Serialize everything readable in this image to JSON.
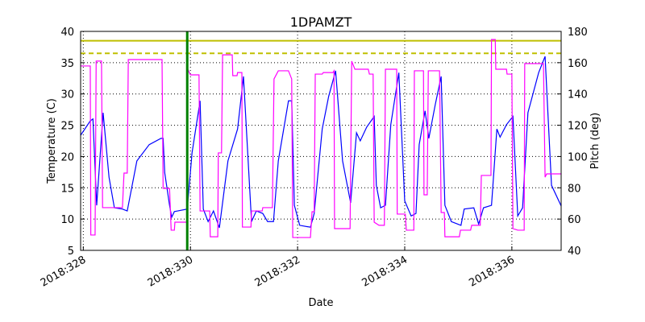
{
  "chart_data": {
    "type": "line",
    "title": "1DPAMZT",
    "x_label": "Date",
    "y_label": "Temperature (C)",
    "y2_label": "Pitch (deg)",
    "xlim": [
      327.95,
      336.92
    ],
    "xticks": [
      {
        "value": 328,
        "label": "2018:328"
      },
      {
        "value": 330,
        "label": "2018:330"
      },
      {
        "value": 332,
        "label": "2018:332"
      },
      {
        "value": 334,
        "label": "2018:334"
      },
      {
        "value": 336,
        "label": "2018:336"
      }
    ],
    "ylim": [
      5,
      40
    ],
    "yticks": [
      5,
      10,
      15,
      20,
      25,
      30,
      35,
      40
    ],
    "y2lim": [
      40,
      180
    ],
    "y2ticks": [
      40,
      60,
      80,
      100,
      120,
      140,
      160,
      180
    ],
    "y2_color": "#ff00ff",
    "grid": true,
    "hlines": [
      {
        "value": 38.5,
        "color": "#bfbf00",
        "style": "solid"
      },
      {
        "value": 36.5,
        "color": "#bfbf00",
        "style": "dashed"
      }
    ],
    "vlines": [
      {
        "value": 329.94,
        "color": "#008000"
      }
    ],
    "series": [
      {
        "color": "#0000ff",
        "x": [
          327.95,
          328.13,
          328.18,
          328.25,
          328.37,
          328.48,
          328.58,
          328.73,
          328.82,
          329.0,
          329.23,
          329.45,
          329.49,
          329.52,
          329.61,
          329.65,
          329.7,
          329.76,
          329.94,
          330.03,
          330.18,
          330.24,
          330.33,
          330.43,
          330.54,
          330.7,
          330.88,
          330.99,
          331.14,
          331.23,
          331.35,
          331.44,
          331.55,
          331.64,
          331.83,
          331.89,
          331.94,
          332.04,
          332.24,
          332.31,
          332.46,
          332.58,
          332.71,
          332.84,
          332.99,
          333.1,
          333.17,
          333.29,
          333.43,
          333.47,
          333.55,
          333.64,
          333.74,
          333.89,
          334.0,
          334.12,
          334.21,
          334.27,
          334.38,
          334.45,
          334.57,
          334.68,
          334.75,
          334.87,
          335.05,
          335.11,
          335.29,
          335.38,
          335.47,
          335.62,
          335.72,
          335.78,
          335.9,
          336.02,
          336.11,
          336.2,
          336.3,
          336.5,
          336.62,
          336.74,
          336.92
        ],
        "values": [
          23.4,
          25.7,
          26,
          12.2,
          27,
          16.7,
          11.8,
          11.6,
          11.3,
          19.3,
          21.9,
          22.9,
          22.9,
          17.4,
          12.2,
          10.3,
          11.2,
          11.3,
          11.6,
          20.6,
          28.9,
          11.6,
          9.6,
          11.3,
          8.6,
          19.3,
          24.4,
          32.8,
          9.6,
          11.3,
          10.9,
          9.6,
          9.6,
          19.3,
          28.9,
          28.9,
          12.2,
          9.0,
          8.7,
          10.9,
          24.4,
          29.6,
          33.7,
          19.3,
          12.6,
          23.8,
          22.5,
          24.7,
          26.4,
          15.4,
          11.8,
          12.2,
          25.1,
          33.4,
          12.9,
          10.5,
          10.9,
          21.9,
          27.3,
          22.9,
          28.3,
          32.8,
          12.2,
          9.6,
          9.0,
          11.6,
          11.8,
          9.2,
          11.8,
          12.2,
          24.4,
          23.1,
          25.1,
          26.4,
          10.5,
          11.8,
          27,
          33.4,
          36,
          15.4,
          12.1
        ]
      },
      {
        "color": "#ff00ff",
        "axis": "y2",
        "x": [
          327.95,
          328.13,
          328.14,
          328.22,
          328.24,
          328.34,
          328.36,
          328.73,
          328.76,
          328.82,
          328.84,
          329.47,
          329.49,
          329.61,
          329.64,
          329.7,
          329.71,
          329.94,
          329.95,
          330.0,
          330.16,
          330.18,
          330.36,
          330.37,
          330.51,
          330.52,
          330.58,
          330.6,
          330.78,
          330.79,
          330.87,
          330.88,
          330.96,
          330.97,
          331.13,
          331.14,
          331.34,
          331.35,
          331.53,
          331.56,
          331.64,
          331.83,
          331.89,
          331.91,
          332.24,
          332.27,
          332.31,
          332.33,
          332.46,
          332.48,
          332.66,
          332.68,
          332.69,
          332.98,
          333.01,
          333.07,
          333.32,
          333.34,
          333.41,
          333.43,
          333.52,
          333.62,
          333.64,
          333.85,
          333.86,
          334.01,
          334.03,
          334.17,
          334.18,
          334.35,
          334.36,
          334.42,
          334.44,
          334.65,
          334.68,
          334.74,
          334.75,
          335.02,
          335.04,
          335.23,
          335.25,
          335.41,
          335.43,
          335.61,
          335.62,
          335.69,
          335.7,
          335.9,
          335.91,
          336.0,
          336.02,
          336.11,
          336.23,
          336.24,
          336.59,
          336.62,
          336.65,
          336.92
        ],
        "values": [
          157.9,
          157.9,
          49.8,
          49.8,
          161,
          161,
          67.3,
          67.3,
          89.4,
          89.4,
          162,
          162,
          79.6,
          79.6,
          52.9,
          52.9,
          58,
          58,
          155.8,
          152.2,
          152.2,
          65.2,
          65.2,
          48.7,
          48.7,
          102.3,
          102.3,
          165,
          165,
          151.7,
          151.7,
          153.7,
          153.7,
          54.9,
          54.9,
          65.2,
          65.2,
          67.3,
          67.3,
          149.6,
          154.8,
          154.8,
          149.6,
          48.2,
          48.2,
          64.7,
          64.7,
          152.7,
          152.7,
          153.7,
          153.7,
          154.8,
          53.9,
          53.9,
          161,
          155.8,
          155.8,
          152.7,
          152.7,
          58,
          56,
          56,
          155.8,
          155.8,
          63.2,
          63.2,
          52.9,
          52.9,
          154.8,
          154.8,
          75.5,
          75.5,
          154.8,
          154.8,
          64.2,
          64.2,
          48.7,
          48.7,
          52.9,
          52.9,
          56,
          56,
          87.9,
          87.9,
          174.8,
          174.8,
          155.8,
          155.8,
          152.7,
          152.7,
          53.9,
          52.9,
          52.9,
          159.4,
          159.4,
          86.8,
          88.9,
          88.9
        ]
      }
    ]
  }
}
